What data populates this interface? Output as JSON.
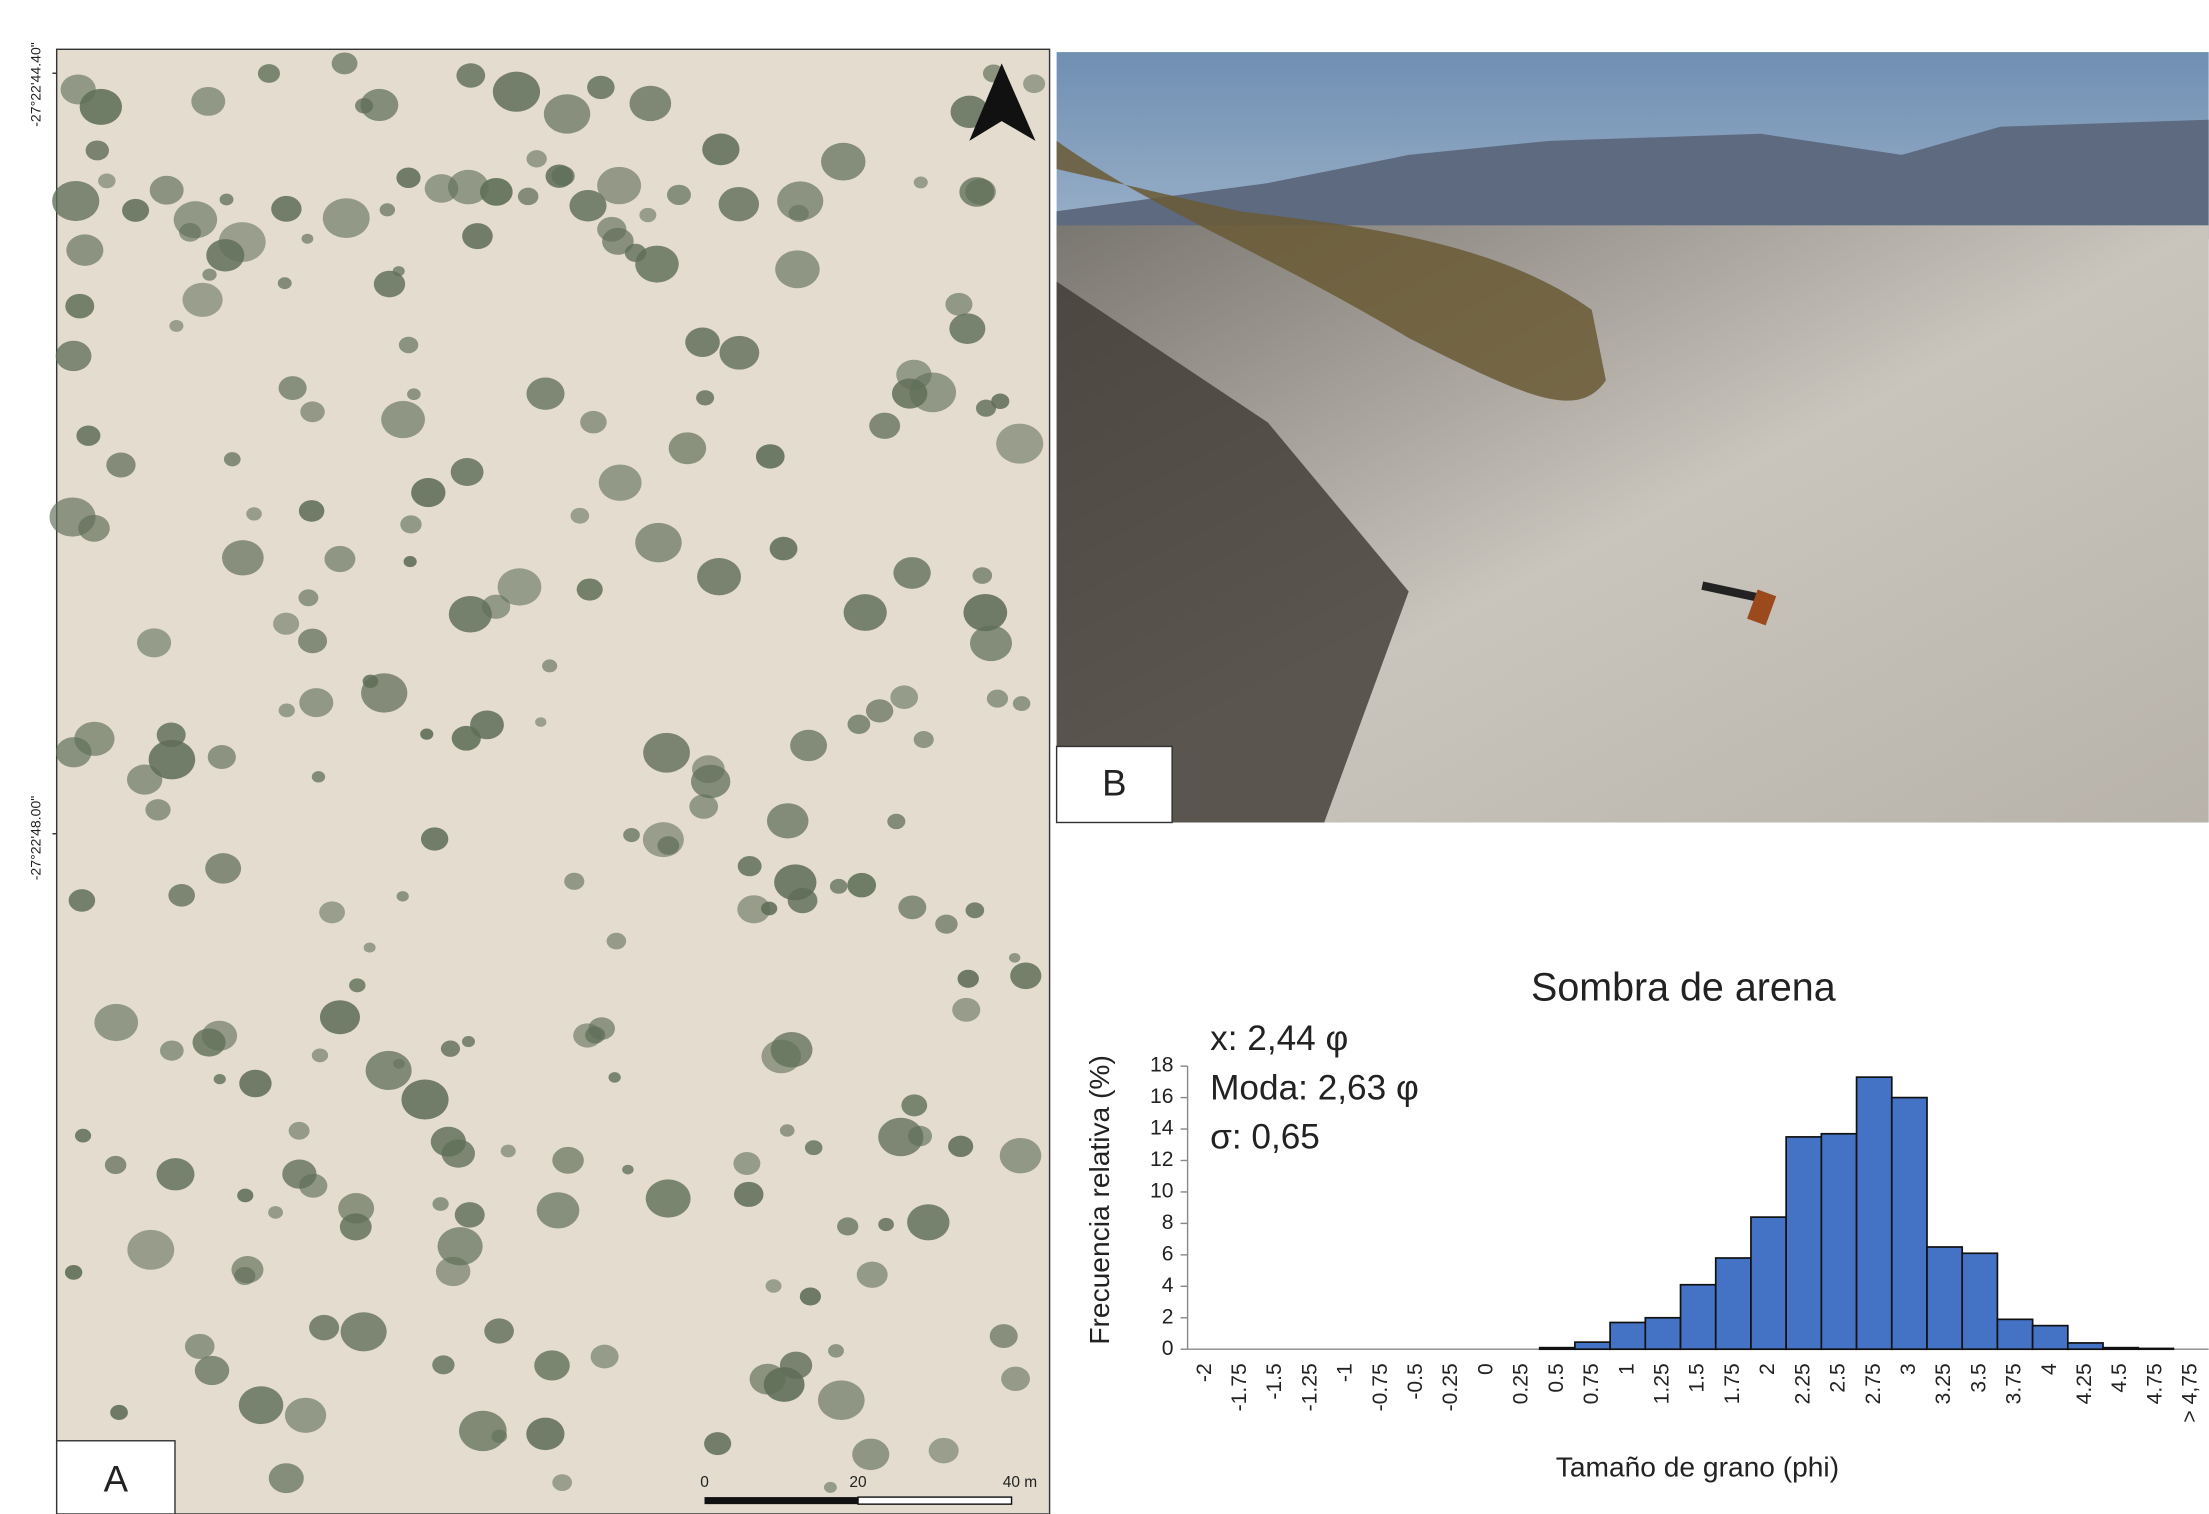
{
  "chart_data": {
    "type": "bar",
    "title": "Sombra de arena",
    "x_label": "Tamaño de grano (phi)",
    "y_label": "Frecuencia relativa (%)",
    "annotations": [
      "x: 2,44 φ",
      "Moda: 2,63 φ",
      "σ: 0,65"
    ],
    "categories": [
      "-2",
      "-1.75",
      "-1.5",
      "-1.25",
      "-1",
      "-0.75",
      "-0.5",
      "-0.25",
      "0",
      "0.25",
      "0.5",
      "0.75",
      "1",
      "1.25",
      "1.5",
      "1.75",
      "2",
      "2.25",
      "2.5",
      "2.75",
      "3",
      "3.25",
      "3.5",
      "3.75",
      "4",
      "4.25",
      "4.5",
      "4.75",
      "> 4,75"
    ],
    "values": [
      0,
      0,
      0,
      0,
      0,
      0,
      0,
      0,
      0,
      0,
      0.1,
      0.45,
      1.7,
      2.0,
      4.1,
      5.8,
      8.4,
      13.5,
      13.7,
      17.3,
      16.0,
      6.5,
      6.1,
      1.9,
      1.5,
      0.4,
      0.1,
      0.05,
      0
    ],
    "color": "#4472c4",
    "ylim": [
      0,
      18
    ],
    "yticks": [
      0,
      2,
      4,
      6,
      8,
      10,
      12,
      14,
      16,
      18
    ],
    "grid": false
  },
  "figure": {
    "panel_labels": [
      "A",
      "B"
    ],
    "coordinates": [
      "-27°22'44.40\"",
      "-27°22'48.00\""
    ],
    "scale_bar": [
      "0",
      "20",
      "40 m"
    ]
  }
}
